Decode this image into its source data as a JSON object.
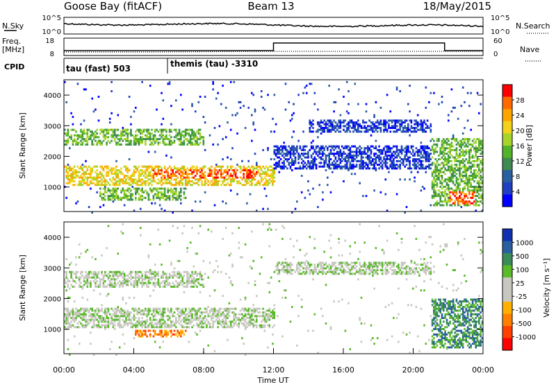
{
  "header": {
    "station": "Goose Bay (fitACF)",
    "beam": "Beam 13",
    "date": "18/May/2015"
  },
  "noise_panel": {
    "left_label": "N.Sky",
    "right_label": "N.Search",
    "left_ticks": [
      "10^5",
      "10^0"
    ],
    "right_ticks": [
      "10^5",
      "10^0"
    ]
  },
  "freq_panel": {
    "left_label_line1": "Freq.",
    "left_label_line2": "[MHz]",
    "right_label": "Nave",
    "left_ticks": [
      "18",
      "8"
    ],
    "right_ticks": [
      "60",
      "0"
    ]
  },
  "cpid": {
    "label": "CPID",
    "segments": [
      {
        "start_hour": 0,
        "end_hour": 6,
        "text": "tau (fast) 503"
      },
      {
        "start_hour": 6,
        "end_hour": 24,
        "text": "themis (tau) -3310"
      }
    ]
  },
  "colors": {
    "power": [
      "#0000ff",
      "#2040c0",
      "#2a5fa0",
      "#3f8a52",
      "#52b32b",
      "#a6d42a",
      "#f2d21a",
      "#ffa500",
      "#ff6a00",
      "#ff0000"
    ],
    "velocity": [
      "#1030b0",
      "#2a5fa0",
      "#3a8a5a",
      "#5aba2a",
      "#c8c8c0",
      "#c8c8c0",
      "#ffb000",
      "#ff8000",
      "#ff4000",
      "#ff0000"
    ]
  },
  "chart_data": [
    {
      "type": "heatmap",
      "name": "power",
      "ylabel": "Slant Range [km]",
      "xlim_hours": [
        0,
        24
      ],
      "ylim": [
        200,
        4500
      ],
      "yticks": [
        1000,
        2000,
        3000,
        4000
      ],
      "colorbar": {
        "label": "Power [dB]",
        "range": [
          0,
          32
        ],
        "ticks": [
          "4",
          "8",
          "12",
          "16",
          "20",
          "24",
          "28"
        ]
      },
      "features": [
        {
          "t0": 0,
          "t1": 12,
          "r0": 1100,
          "r1": 1700,
          "level": "high"
        },
        {
          "t0": 5,
          "t1": 11,
          "r0": 1300,
          "r1": 1600,
          "level": "peak"
        },
        {
          "t0": 0,
          "t1": 8,
          "r0": 2400,
          "r1": 2900,
          "level": "medium"
        },
        {
          "t0": 2,
          "t1": 7,
          "r0": 600,
          "r1": 1000,
          "level": "medium"
        },
        {
          "t0": 12,
          "t1": 21,
          "r0": 1600,
          "r1": 2400,
          "level": "low"
        },
        {
          "t0": 14,
          "t1": 21,
          "r0": 2800,
          "r1": 3200,
          "level": "low"
        },
        {
          "t0": 21,
          "t1": 24,
          "r0": 400,
          "r1": 2600,
          "level": "medium"
        },
        {
          "t0": 22,
          "t1": 23.5,
          "r0": 500,
          "r1": 900,
          "level": "peak"
        }
      ]
    },
    {
      "type": "heatmap",
      "name": "velocity",
      "xlabel": "Time UT",
      "ylabel": "Slant Range [km]",
      "xlim_hours": [
        0,
        24
      ],
      "ylim": [
        200,
        4500
      ],
      "yticks": [
        1000,
        2000,
        3000,
        4000
      ],
      "xticks": [
        "00:00",
        "04:00",
        "08:00",
        "12:00",
        "16:00",
        "20:00",
        "00:00"
      ],
      "colorbar": {
        "label": "Velocity [m s⁻¹]",
        "ticks": [
          "1000",
          "500",
          "100",
          "25",
          "-25",
          "-100",
          "-500",
          "-1000"
        ]
      },
      "features": [
        {
          "t0": 0,
          "t1": 12,
          "r0": 1100,
          "r1": 1700,
          "level": "neutral"
        },
        {
          "t0": 4,
          "t1": 7,
          "r0": 800,
          "r1": 1000,
          "level": "negative"
        },
        {
          "t0": 0,
          "t1": 8,
          "r0": 2400,
          "r1": 2900,
          "level": "neutral"
        },
        {
          "t0": 12,
          "t1": 21,
          "r0": 2800,
          "r1": 3200,
          "level": "neutral"
        },
        {
          "t0": 21,
          "t1": 24,
          "r0": 400,
          "r1": 2000,
          "level": "positive"
        }
      ]
    }
  ],
  "time_axis": {
    "label": "Time UT",
    "ticks": [
      "00:00",
      "04:00",
      "08:00",
      "12:00",
      "16:00",
      "20:00",
      "00:00"
    ]
  }
}
